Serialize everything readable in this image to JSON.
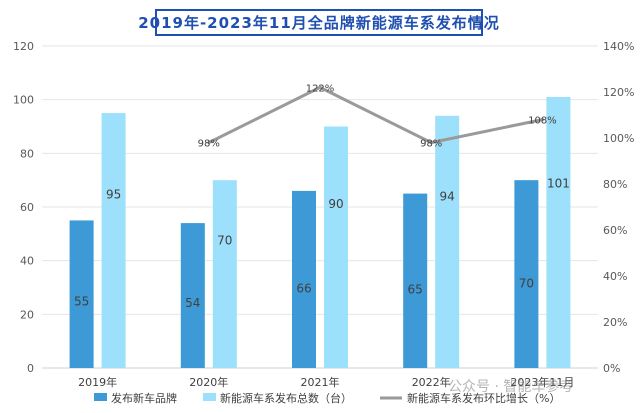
{
  "chart_data": {
    "type": "bar",
    "title": "2019年-2023年11月全品牌新能源车系发布情况",
    "categories": [
      "2019年",
      "2020年",
      "2021年",
      "2022年",
      "2023年11月"
    ],
    "series": [
      {
        "name": "发布新车品牌",
        "kind": "bar",
        "axis": "left",
        "color": "#3d9ad6",
        "values": [
          55,
          54,
          66,
          65,
          70
        ]
      },
      {
        "name": "新能源车系发布总数（台）",
        "kind": "bar",
        "axis": "left",
        "color": "#9de0fb",
        "values": [
          95,
          70,
          90,
          94,
          101
        ]
      },
      {
        "name": "新能源车系发布环比增长（%）",
        "kind": "line",
        "axis": "right",
        "color": "#9a9a9a",
        "values": [
          null,
          98,
          122,
          98,
          108
        ],
        "labels": [
          "",
          "98%",
          "122%",
          "98%",
          "108%"
        ]
      }
    ],
    "y_left": {
      "ticks": [
        0,
        20,
        40,
        60,
        80,
        100,
        120
      ],
      "range": [
        0,
        120
      ]
    },
    "y_right": {
      "ticks": [
        "0%",
        "20%",
        "40%",
        "60%",
        "80%",
        "100%",
        "120%",
        "140%"
      ],
      "range": [
        0,
        140
      ]
    },
    "grid": true,
    "legend_position": "bottom"
  },
  "watermark": "公众号 · 智能车参考"
}
